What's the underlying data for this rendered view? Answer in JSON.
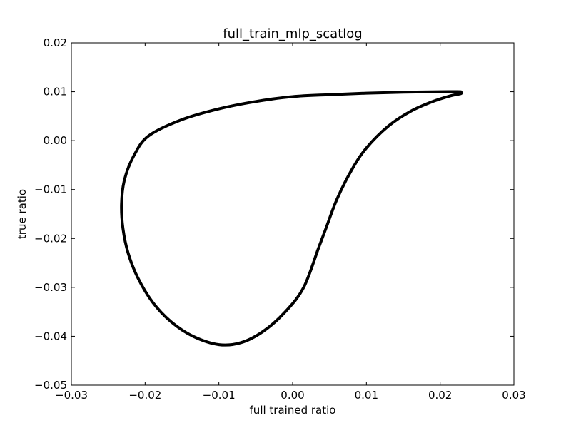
{
  "chart_data": {
    "type": "line",
    "title": "full_train_mlp_scatlog",
    "xlabel": "full trained ratio",
    "ylabel": "true ratio",
    "xlim": [
      -0.03,
      0.03
    ],
    "ylim": [
      -0.05,
      0.02
    ],
    "xticks": [
      -0.03,
      -0.02,
      -0.01,
      0.0,
      0.01,
      0.02,
      0.03
    ],
    "yticks": [
      -0.05,
      -0.04,
      -0.03,
      -0.02,
      -0.01,
      0.0,
      0.01,
      0.02
    ],
    "xtick_labels": [
      "−0.03",
      "−0.02",
      "−0.01",
      "0.00",
      "0.01",
      "0.02",
      "0.03"
    ],
    "ytick_labels": [
      "−0.05",
      "−0.04",
      "−0.03",
      "−0.02",
      "−0.01",
      "0.00",
      "0.01",
      "0.02"
    ],
    "grid": false,
    "legend": false,
    "series": [
      {
        "color": "#000000",
        "points": [
          [
            0.0228,
            0.01
          ],
          [
            0.02,
            0.01
          ],
          [
            0.015,
            0.0099
          ],
          [
            0.01,
            0.0097
          ],
          [
            0.005,
            0.0094
          ],
          [
            0.0,
            0.009
          ],
          [
            -0.005,
            0.008
          ],
          [
            -0.01,
            0.0065
          ],
          [
            -0.015,
            0.0043
          ],
          [
            -0.0195,
            0.001
          ],
          [
            -0.0215,
            -0.003
          ],
          [
            -0.0228,
            -0.008
          ],
          [
            -0.0232,
            -0.013
          ],
          [
            -0.023,
            -0.018
          ],
          [
            -0.0223,
            -0.023
          ],
          [
            -0.021,
            -0.028
          ],
          [
            -0.019,
            -0.033
          ],
          [
            -0.0165,
            -0.037
          ],
          [
            -0.0135,
            -0.04
          ],
          [
            -0.01,
            -0.0417
          ],
          [
            -0.007,
            -0.0413
          ],
          [
            -0.004,
            -0.039
          ],
          [
            -0.001,
            -0.035
          ],
          [
            0.0015,
            -0.03
          ],
          [
            0.0035,
            -0.022
          ],
          [
            0.0045,
            -0.018
          ],
          [
            0.006,
            -0.012
          ],
          [
            0.008,
            -0.006
          ],
          [
            0.01,
            -0.0015
          ],
          [
            0.013,
            0.003
          ],
          [
            0.016,
            0.006
          ],
          [
            0.019,
            0.008
          ],
          [
            0.0215,
            0.0092
          ],
          [
            0.0228,
            0.0096
          ],
          [
            0.0228,
            0.01
          ]
        ]
      }
    ]
  }
}
